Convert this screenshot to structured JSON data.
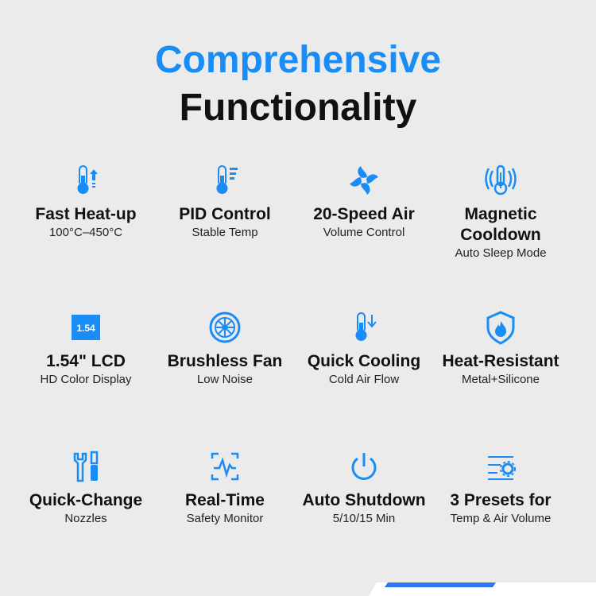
{
  "title": {
    "line1": "Comprehensive",
    "line2": "Functionality"
  },
  "accent": "#1a8cf5",
  "features": [
    {
      "icon": "thermometer-up-icon",
      "title": "Fast Heat-up",
      "subtitle": "100°C–450°C"
    },
    {
      "icon": "thermometer-bars-icon",
      "title": "PID Control",
      "subtitle": "Stable Temp"
    },
    {
      "icon": "fan-icon",
      "title": "20-Speed Air",
      "subtitle": "Volume Control"
    },
    {
      "icon": "thermometer-waves-icon",
      "title": "Magnetic Cooldown",
      "subtitle": "Auto Sleep Mode"
    },
    {
      "icon": "lcd-icon",
      "icon_text": "1.54",
      "title": "1.54\" LCD",
      "subtitle": "HD Color Display"
    },
    {
      "icon": "brushless-fan-icon",
      "title": "Brushless Fan",
      "subtitle": "Low Noise"
    },
    {
      "icon": "thermometer-down-icon",
      "title": "Quick Cooling",
      "subtitle": "Cold Air Flow"
    },
    {
      "icon": "shield-flame-icon",
      "title": "Heat-Resistant",
      "subtitle": "Metal+Silicone"
    },
    {
      "icon": "tools-icon",
      "title": "Quick-Change",
      "subtitle": "Nozzles"
    },
    {
      "icon": "monitor-pulse-icon",
      "title": "Real-Time",
      "subtitle": "Safety Monitor"
    },
    {
      "icon": "power-icon",
      "title": "Auto Shutdown",
      "subtitle": "5/10/15 Min"
    },
    {
      "icon": "presets-gear-icon",
      "title": "3 Presets for",
      "subtitle": "Temp & Air Volume"
    }
  ]
}
